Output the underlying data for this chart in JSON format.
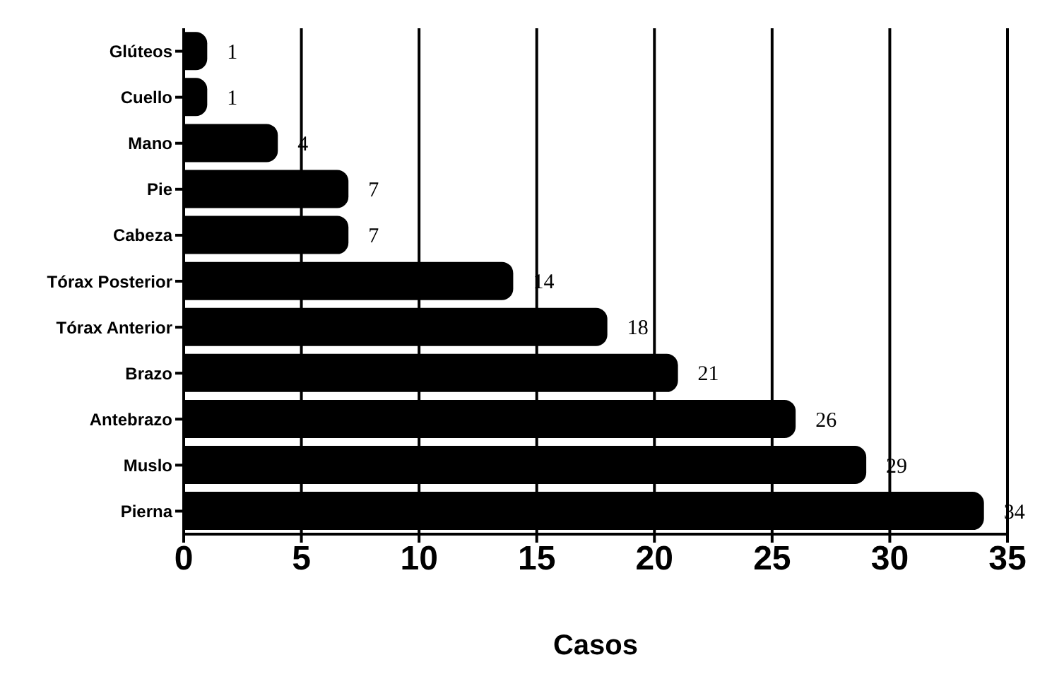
{
  "chart_data": {
    "type": "bar",
    "orientation": "horizontal",
    "xlabel": "Casos",
    "categories": [
      "Glúteos",
      "Cuello",
      "Mano",
      "Pie",
      "Cabeza",
      "Tórax Posterior",
      "Tórax Anterior",
      "Brazo",
      "Antebrazo",
      "Muslo",
      "Pierna"
    ],
    "values": [
      1,
      1,
      4,
      7,
      7,
      14,
      18,
      21,
      26,
      29,
      34
    ],
    "color": "#000000",
    "xlim": [
      0,
      35
    ],
    "xticks": [
      0,
      5,
      10,
      15,
      20,
      25,
      30,
      35
    ],
    "grid": "x",
    "data_labels": true
  }
}
